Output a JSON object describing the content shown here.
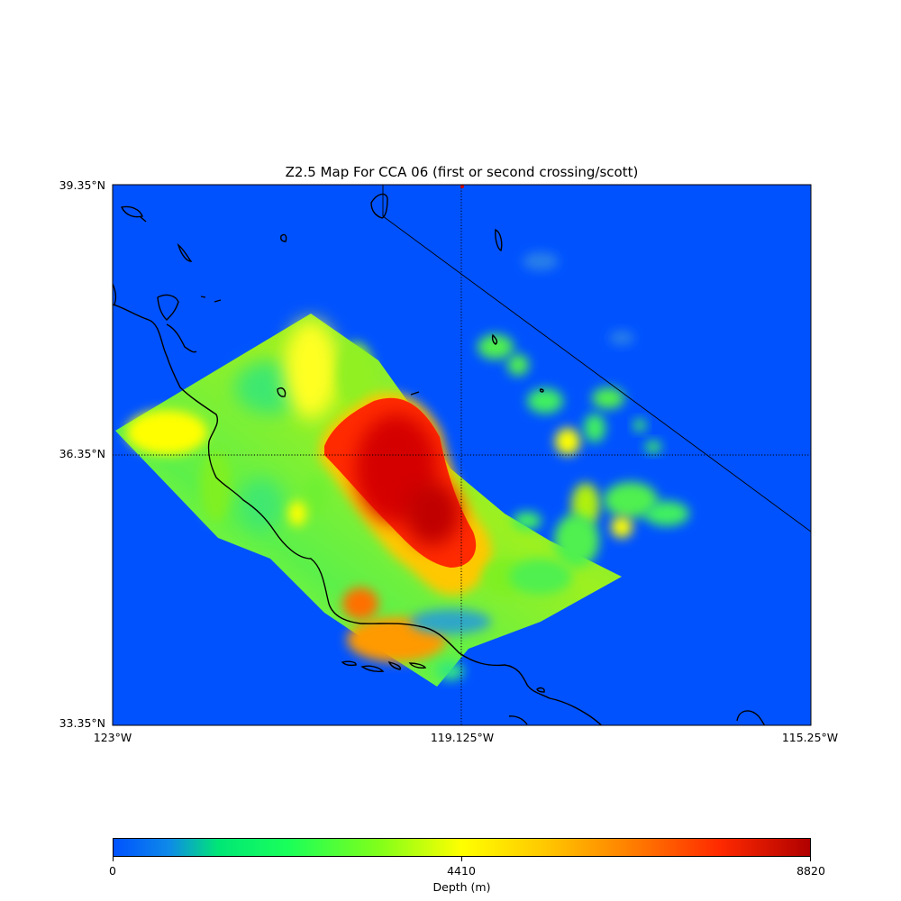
{
  "title": "Z2.5 Map For CCA 06 (first or second crossing/scott)",
  "map": {
    "lat_labels": [
      "39.35°N",
      "36.35°N",
      "33.35°N"
    ],
    "lon_labels": [
      "123°W",
      "119.125°W",
      "115.25°W"
    ],
    "lat_range": [
      33.35,
      39.35
    ],
    "lon_range": [
      -123,
      -115.25
    ],
    "background_color": "#0052ff",
    "coastline_color": "#000000",
    "gridlines": "dotted at 36.35°N and 119.125°W"
  },
  "colorbar": {
    "label": "Depth (m)",
    "ticks": [
      "0",
      "4410",
      "8820"
    ],
    "range": [
      0,
      8820
    ],
    "colormap": "jet-like (blue → green → yellow → red)"
  }
}
